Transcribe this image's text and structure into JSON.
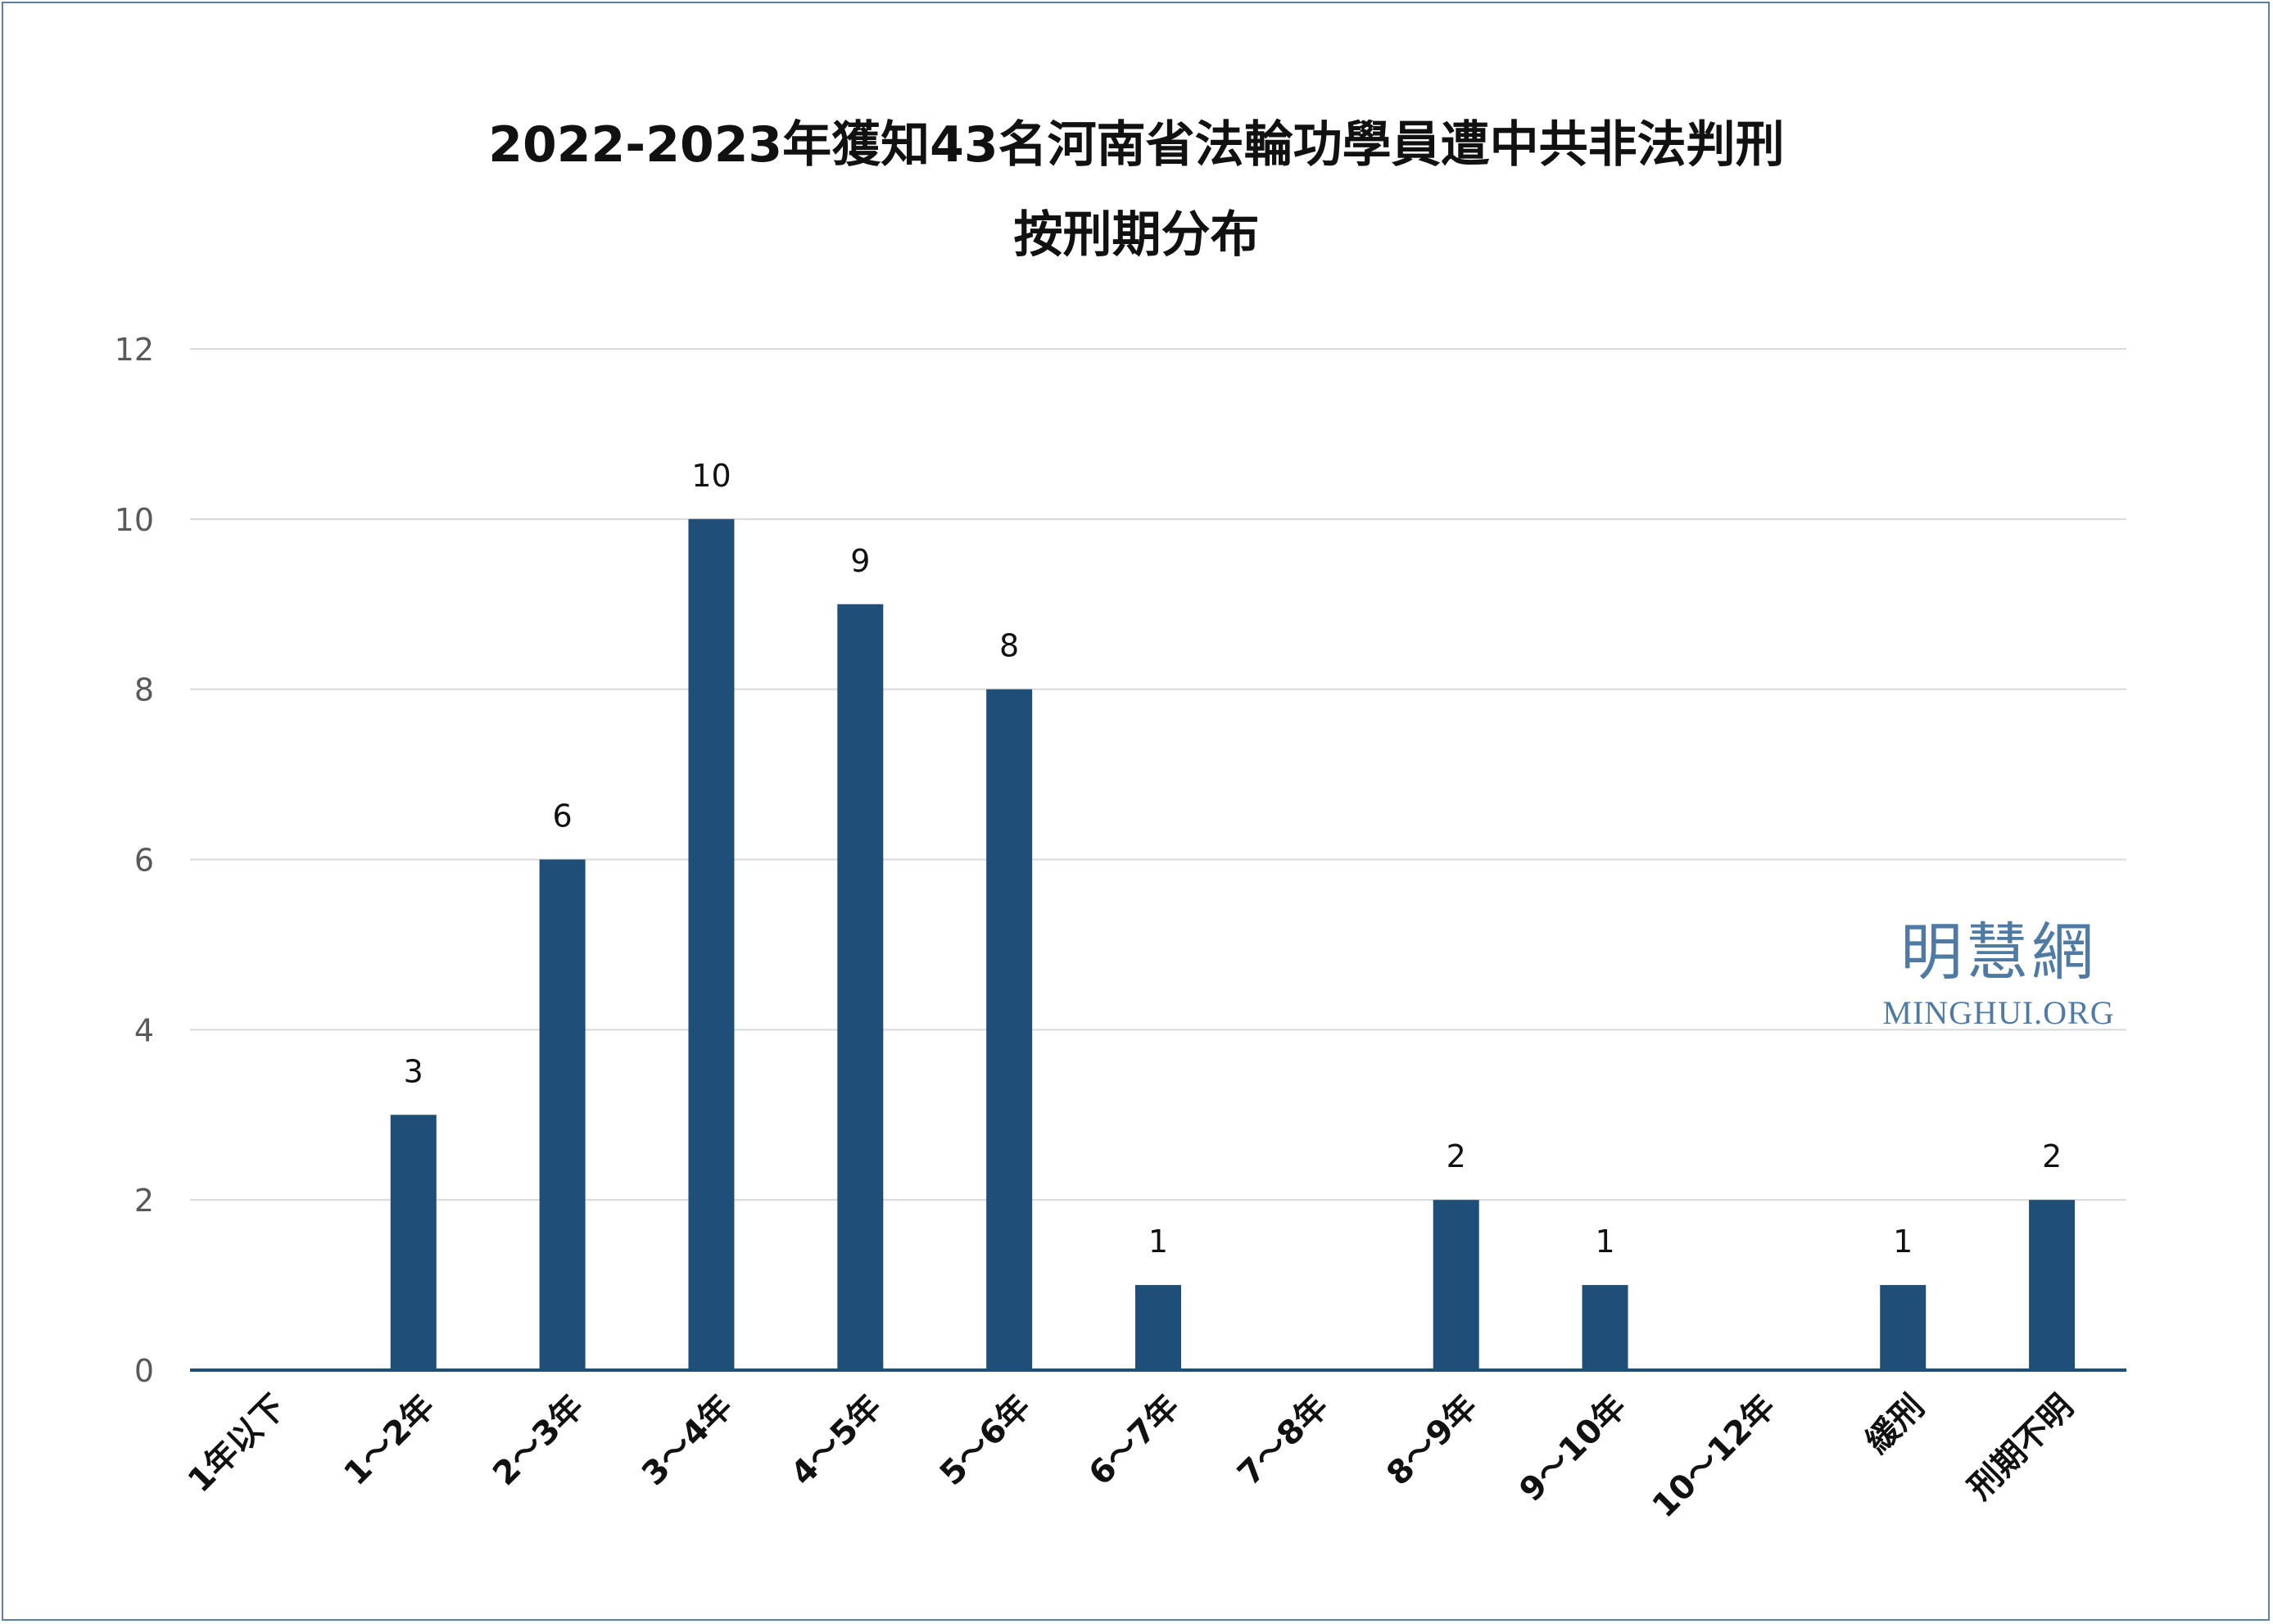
{
  "chart_data": {
    "type": "bar",
    "title": "2022-2023年獲知43名河南省法輪功學員遭中共非法判刑",
    "subtitle": "按刑期分布",
    "categories": [
      "1年以下",
      "1～2年",
      "2～3年",
      "3～4年",
      "4～5年",
      "5～6年",
      "6～7年",
      "7～8年",
      "8～9年",
      "9～10年",
      "10～12年",
      "緩刑",
      "刑期不明"
    ],
    "values": [
      0,
      3,
      6,
      10,
      9,
      8,
      1,
      0,
      2,
      1,
      0,
      1,
      2
    ],
    "data_labels": [
      "",
      "3",
      "6",
      "10",
      "9",
      "8",
      "1",
      "",
      "2",
      "1",
      "",
      "1",
      "2"
    ],
    "ylim": [
      0,
      12
    ],
    "yticks": [
      0,
      2,
      4,
      6,
      8,
      10,
      12
    ],
    "grid": true,
    "colors": {
      "bar": "#1f4e79",
      "grid": "#d9d9d9",
      "axis": "#1f4e79",
      "tick_text": "#595959"
    }
  },
  "watermark": {
    "chinese": "明慧網",
    "english": "MINGHUI.ORG"
  }
}
